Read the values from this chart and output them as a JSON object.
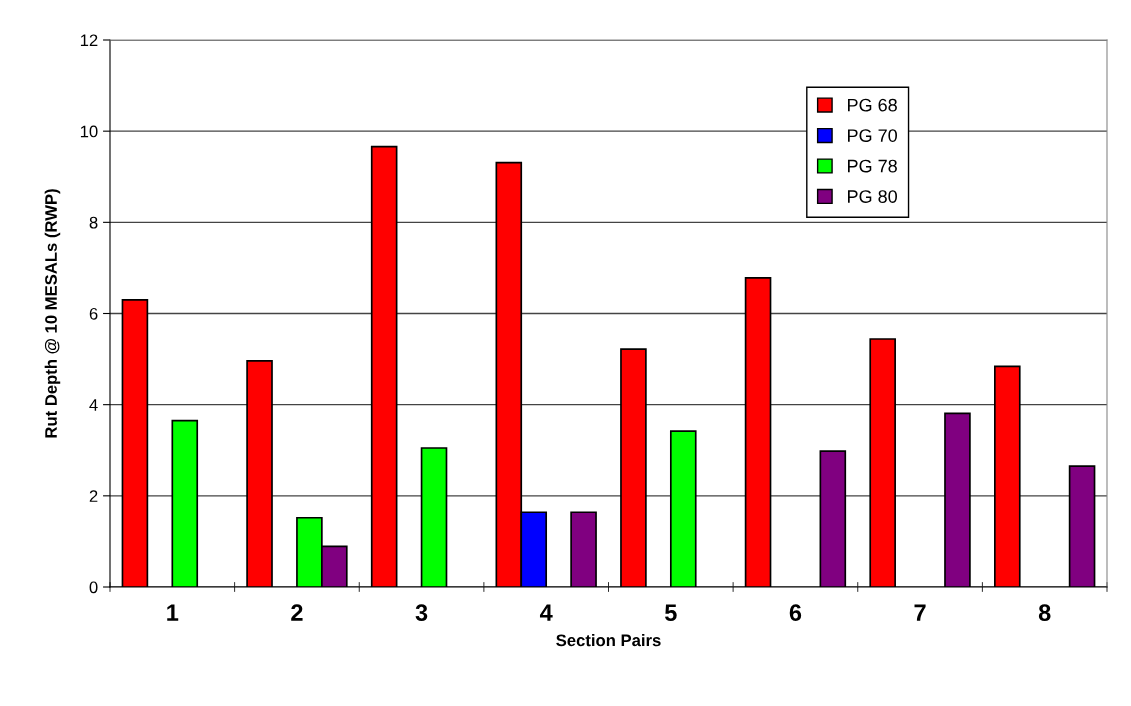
{
  "chart_data": {
    "type": "bar",
    "xlabel": "Section Pairs",
    "ylabel": "Rut Depth @ 10 MESALs (RWP)",
    "categories": [
      "1",
      "2",
      "3",
      "4",
      "5",
      "6",
      "7",
      "8"
    ],
    "series": [
      {
        "name": "PG 68",
        "color": "#ff0000",
        "values": [
          6.3,
          4.96,
          9.66,
          9.31,
          5.22,
          6.78,
          5.44,
          4.84
        ]
      },
      {
        "name": "PG 70",
        "color": "#0000ff",
        "values": [
          null,
          null,
          null,
          1.64,
          null,
          null,
          null,
          null
        ]
      },
      {
        "name": "PG 78",
        "color": "#00ff00",
        "values": [
          3.65,
          1.52,
          3.05,
          null,
          3.42,
          null,
          null,
          null
        ]
      },
      {
        "name": "PG 80",
        "color": "#800080",
        "values": [
          null,
          0.89,
          null,
          1.64,
          null,
          2.98,
          3.81,
          2.65
        ]
      }
    ],
    "ylim": [
      0,
      12
    ],
    "yticks": [
      0,
      2,
      4,
      6,
      8,
      10,
      12
    ],
    "grid": "y",
    "legend": "top right"
  }
}
